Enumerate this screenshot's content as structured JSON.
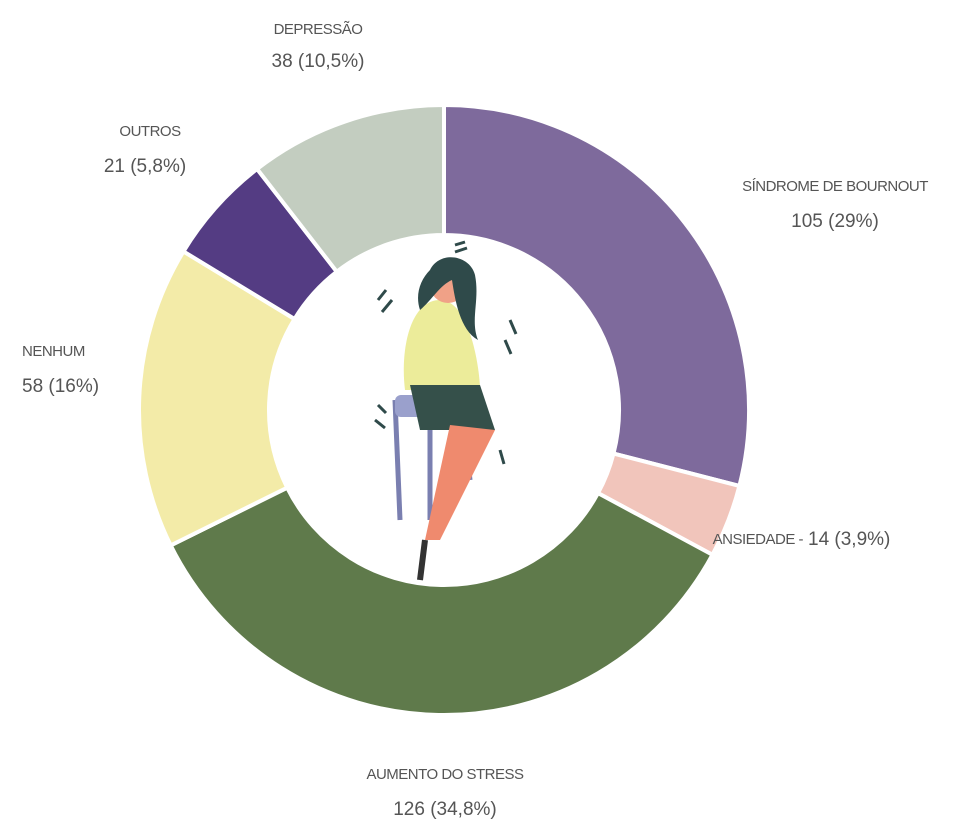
{
  "chart_data": {
    "type": "donut",
    "categories": [
      "SÍNDROME DE BOURNOUT",
      "ANSIEDADE -",
      "AUMENTO DO STRESS",
      "NENHUM",
      "OUTROS",
      "DEPRESSÃO"
    ],
    "values": [
      105,
      14,
      126,
      58,
      21,
      38
    ],
    "value_labels": [
      "105 (29%)",
      "14 (3,9%)",
      "126 (34,8%)",
      "58 (16%)",
      "21 (5,8%)",
      "38 (10,5%)"
    ],
    "colors": [
      "#7e6a9c",
      "#f1c5bb",
      "#5f7a4b",
      "#f3eba8",
      "#543c83",
      "#c3cdc0"
    ]
  }
}
